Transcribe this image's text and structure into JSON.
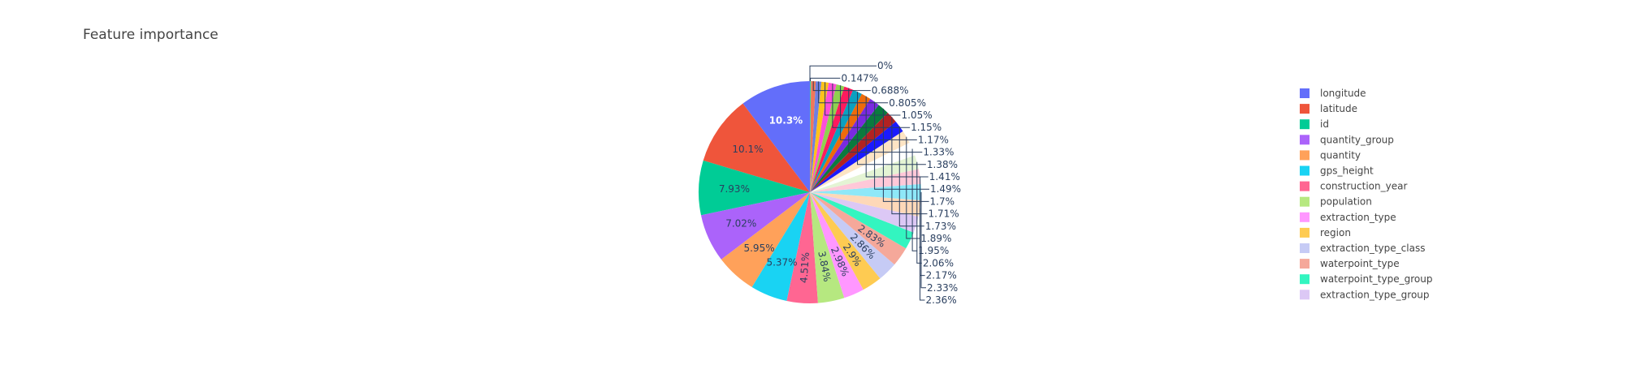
{
  "chart_data": {
    "type": "pie",
    "title": "Feature importance",
    "legend_position": "right",
    "show_legend_count": 14,
    "slices": [
      {
        "name": "longitude",
        "label": "10.3%",
        "value": 10.3,
        "color": "#636efa"
      },
      {
        "name": "latitude",
        "label": "10.1%",
        "value": 10.1,
        "color": "#EF553B"
      },
      {
        "name": "id",
        "label": "7.93%",
        "value": 7.93,
        "color": "#00cc96"
      },
      {
        "name": "quantity_group",
        "label": "7.02%",
        "value": 7.02,
        "color": "#ab63fa"
      },
      {
        "name": "quantity",
        "label": "5.95%",
        "value": 5.95,
        "color": "#FFA15A"
      },
      {
        "name": "gps_height",
        "label": "5.37%",
        "value": 5.37,
        "color": "#19d3f3"
      },
      {
        "name": "construction_year",
        "label": "4.51%",
        "value": 4.51,
        "color": "#FF6692"
      },
      {
        "name": "population",
        "label": "3.84%",
        "value": 3.84,
        "color": "#B6E880"
      },
      {
        "name": "extraction_type",
        "label": "2.98%",
        "value": 2.98,
        "color": "#FF97FF"
      },
      {
        "name": "region",
        "label": "2.9%",
        "value": 2.9,
        "color": "#FECB52"
      },
      {
        "name": "extraction_type_class",
        "label": "2.86%",
        "value": 2.86,
        "color": "#c6cbf5"
      },
      {
        "name": "waterpoint_type",
        "label": "2.83%",
        "value": 2.83,
        "color": "#f5a89a"
      },
      {
        "name": "waterpoint_type_group",
        "label": "",
        "value": 2.52,
        "color": "#33f5c0"
      },
      {
        "name": "extraction_type_group",
        "label": "",
        "value": 2.41,
        "color": "#dcc8f5"
      },
      {
        "name": "",
        "label": "2.36%",
        "value": 2.36,
        "color": "#fed8b8"
      },
      {
        "name": "",
        "label": "2.33%",
        "value": 2.33,
        "color": "#8ee8f8"
      },
      {
        "name": "",
        "label": "2.17%",
        "value": 2.17,
        "color": "#ffc8d8"
      },
      {
        "name": "",
        "label": "2.06%",
        "value": 2.06,
        "color": "#e4f4d4"
      },
      {
        "name": "",
        "label": "1.95%",
        "value": 1.95,
        "color": "#ffffff"
      },
      {
        "name": "",
        "label": "1.89%",
        "value": 1.89,
        "color": "#fde4c4"
      },
      {
        "name": "",
        "label": "1.73%",
        "value": 1.73,
        "color": "#1a1aff"
      },
      {
        "name": "",
        "label": "1.71%",
        "value": 1.71,
        "color": "#b22222"
      },
      {
        "name": "",
        "label": "1.7%",
        "value": 1.7,
        "color": "#0b7a3e"
      },
      {
        "name": "",
        "label": "1.49%",
        "value": 1.49,
        "color": "#7a2ae0"
      },
      {
        "name": "",
        "label": "1.41%",
        "value": 1.41,
        "color": "#ee6b0a"
      },
      {
        "name": "",
        "label": "1.38%",
        "value": 1.38,
        "color": "#0aa0c0"
      },
      {
        "name": "",
        "label": "1.33%",
        "value": 1.33,
        "color": "#ff1a5e"
      },
      {
        "name": "",
        "label": "1.17%",
        "value": 1.17,
        "color": "#8fd14f"
      },
      {
        "name": "",
        "label": "1.15%",
        "value": 1.15,
        "color": "#ff4dd8"
      },
      {
        "name": "",
        "label": "1.05%",
        "value": 1.05,
        "color": "#ffc21a"
      },
      {
        "name": "",
        "label": "0.805%",
        "value": 0.805,
        "color": "#6f7fe0"
      },
      {
        "name": "",
        "label": "0.688%",
        "value": 0.688,
        "color": "#f07858"
      },
      {
        "name": "",
        "label": "0.147%",
        "value": 0.147,
        "color": "#40d0a0"
      },
      {
        "name": "",
        "label": "0%",
        "value": 0.0,
        "color": "#b080f8"
      }
    ]
  }
}
